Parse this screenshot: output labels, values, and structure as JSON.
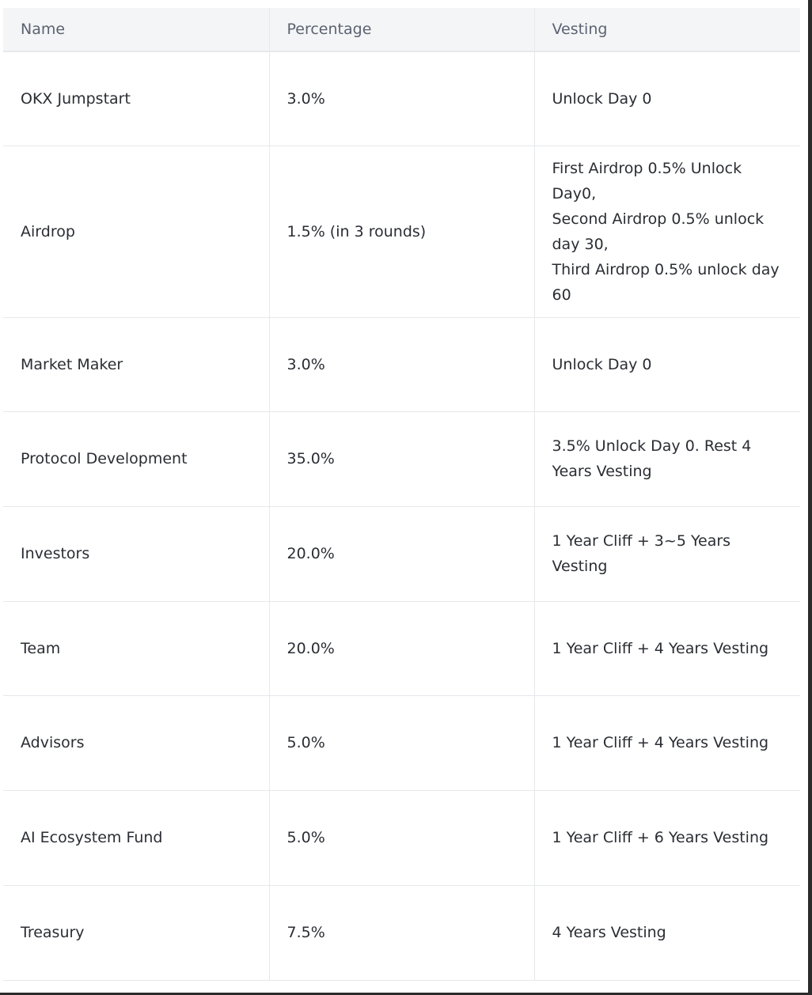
{
  "table": {
    "headers": [
      "Name",
      "Percentage",
      "Vesting"
    ],
    "rows": [
      {
        "name": "OKX Jumpstart",
        "percentage": "3.0%",
        "vesting": [
          "Unlock Day 0"
        ]
      },
      {
        "name": "Airdrop",
        "percentage": "1.5% (in 3 rounds)",
        "vesting": [
          "First Airdrop 0.5% Unlock Day0,",
          "Second Airdrop 0.5% unlock day 30,",
          "Third Airdrop 0.5% unlock day 60"
        ]
      },
      {
        "name": "Market Maker",
        "percentage": "3.0%",
        "vesting": [
          "Unlock Day 0"
        ]
      },
      {
        "name": "Protocol Development",
        "percentage": "35.0%",
        "vesting": [
          "3.5% Unlock Day 0. Rest 4 Years Vesting"
        ]
      },
      {
        "name": "Investors",
        "percentage": "20.0%",
        "vesting": [
          "1 Year Cliff + 3~5 Years Vesting"
        ]
      },
      {
        "name": "Team",
        "percentage": "20.0%",
        "vesting": [
          "1 Year Cliff + 4 Years Vesting"
        ]
      },
      {
        "name": "Advisors",
        "percentage": "5.0%",
        "vesting": [
          "1 Year Cliff + 4 Years Vesting"
        ]
      },
      {
        "name": "AI Ecosystem Fund",
        "percentage": "5.0%",
        "vesting": [
          "1 Year Cliff + 6 Years Vesting"
        ]
      },
      {
        "name": "Treasury",
        "percentage": "7.5%",
        "vesting": [
          "4 Years Vesting"
        ]
      }
    ]
  }
}
